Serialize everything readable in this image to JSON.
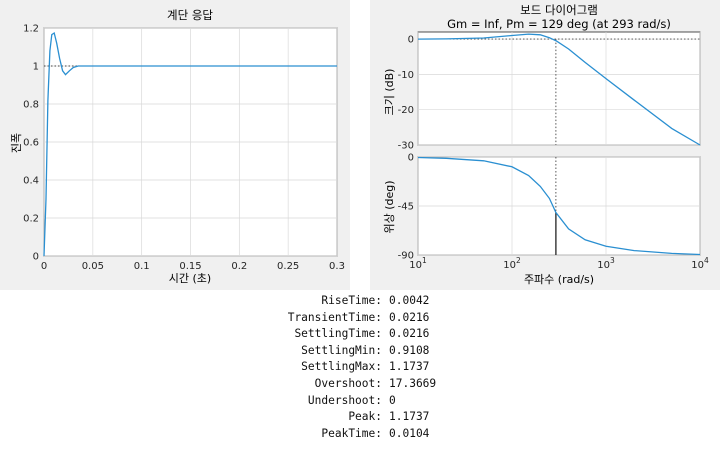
{
  "chart_data": [
    {
      "type": "line",
      "title": "계단 응답",
      "xlabel": "시간 (초)",
      "ylabel": "진폭",
      "xlim": [
        0,
        0.3
      ],
      "ylim": [
        0,
        1.2
      ],
      "xticks": [
        "0",
        "0.05",
        "0.1",
        "0.15",
        "0.2",
        "0.25",
        "0.3"
      ],
      "yticks": [
        "0",
        "0.2",
        "0.4",
        "0.6",
        "0.8",
        "1",
        "1.2"
      ],
      "grid": true,
      "series": [
        {
          "x": [
            0,
            0.002,
            0.004,
            0.006,
            0.008,
            0.0104,
            0.013,
            0.016,
            0.019,
            0.022,
            0.026,
            0.03,
            0.035,
            0.04,
            0.05,
            0.1,
            0.2,
            0.3
          ],
          "values": [
            0,
            0.3,
            0.82,
            1.08,
            1.165,
            1.1737,
            1.12,
            1.04,
            0.975,
            0.955,
            0.975,
            0.992,
            1.0,
            1.0,
            1.0,
            1.0,
            1.0,
            1.0
          ]
        }
      ],
      "reference_lines": [
        {
          "axis": "y",
          "value": 1,
          "style": "dotted"
        }
      ]
    },
    {
      "type": "line",
      "title": "보드 다이어그램",
      "subtitle": "Gm = Inf,  Pm = 129 deg (at 293 rad/s)",
      "xlabel": "주파수  (rad/s)",
      "xscale": "log",
      "xlim": [
        10,
        10000
      ],
      "xticks": [
        "10^1",
        "10^2",
        "10^3",
        "10^4"
      ],
      "grid": true,
      "panels": [
        {
          "ylabel": "크기 (dB)",
          "ylim": [
            -30,
            2
          ],
          "yticks": [
            "-30",
            "-20",
            "-10",
            "0"
          ],
          "series": [
            {
              "x": [
                10,
                20,
                50,
                100,
                150,
                200,
                250,
                300,
                400,
                600,
                1000,
                2000,
                5000,
                10000
              ],
              "values": [
                0.0,
                0.05,
                0.3,
                1.0,
                1.4,
                1.2,
                0.4,
                -0.6,
                -2.8,
                -6.6,
                -11.2,
                -17.3,
                -25.3,
                -31.3
              ]
            }
          ]
        },
        {
          "ylabel": "위상 (deg)",
          "ylim": [
            -90,
            0
          ],
          "yticks": [
            "-90",
            "-45",
            "0"
          ],
          "series": [
            {
              "x": [
                10,
                20,
                50,
                100,
                150,
                200,
                250,
                293,
                400,
                600,
                1000,
                2000,
                5000,
                10000
              ],
              "values": [
                -0.5,
                -1.2,
                -3.5,
                -9,
                -17,
                -27,
                -38,
                -51,
                -66,
                -76,
                -82,
                -86,
                -88.5,
                -89.5
              ]
            }
          ]
        }
      ],
      "crossover_frequency": 293,
      "phase_at_crossover": -51
    }
  ],
  "step_info": [
    {
      "name": "RiseTime:",
      "value": "0.0042"
    },
    {
      "name": "TransientTime:",
      "value": "0.0216"
    },
    {
      "name": "SettlingTime:",
      "value": "0.0216"
    },
    {
      "name": "SettlingMin:",
      "value": "0.9108"
    },
    {
      "name": "SettlingMax:",
      "value": "1.1737"
    },
    {
      "name": "Overshoot:",
      "value": "17.3669"
    },
    {
      "name": "Undershoot:",
      "value": "0"
    },
    {
      "name": "Peak:",
      "value": "1.1737"
    },
    {
      "name": "PeakTime:",
      "value": "0.0104"
    }
  ],
  "colors": {
    "line": "#2a8fd1",
    "figure_bg": "#f0f0f0",
    "axes": "#262626"
  }
}
